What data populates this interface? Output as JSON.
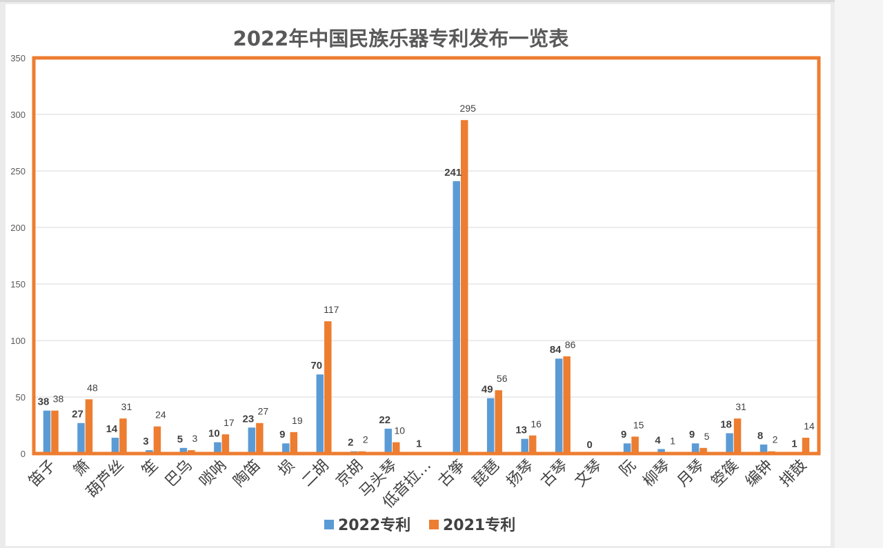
{
  "chart_data": {
    "type": "bar",
    "title": "2022年中国民族乐器专利发布一览表",
    "categories": [
      "笛子",
      "箫",
      "葫芦丝",
      "笙",
      "巴乌",
      "唢呐",
      "陶笛",
      "埙",
      "二胡",
      "京胡",
      "马头琴",
      "低音拉…",
      "古筝",
      "琵琶",
      "扬琴",
      "古琴",
      "文琴",
      "阮",
      "柳琴",
      "月琴",
      "箜篌",
      "编钟",
      "排鼓"
    ],
    "series": [
      {
        "name": "2022专利",
        "color": "#5b9bd5",
        "values": [
          38,
          27,
          14,
          3,
          5,
          10,
          23,
          9,
          70,
          2,
          22,
          1,
          241,
          49,
          13,
          84,
          0,
          9,
          4,
          9,
          18,
          8,
          1
        ]
      },
      {
        "name": "2021专利",
        "color": "#ed7d31",
        "values": [
          38,
          48,
          31,
          24,
          3,
          17,
          27,
          19,
          117,
          2,
          10,
          0,
          295,
          56,
          16,
          86,
          0,
          15,
          1,
          5,
          31,
          2,
          14
        ]
      }
    ],
    "series_labels_shown": [
      [
        true,
        true,
        true,
        true,
        true,
        true,
        true,
        true,
        true,
        true,
        true,
        true,
        true,
        true,
        true,
        true,
        true,
        true,
        true,
        true,
        true,
        true,
        true
      ],
      [
        true,
        true,
        true,
        true,
        true,
        true,
        true,
        true,
        true,
        true,
        true,
        false,
        true,
        true,
        true,
        true,
        false,
        true,
        true,
        true,
        true,
        true,
        true
      ]
    ],
    "ylim": [
      0,
      350
    ],
    "yticks": [
      0,
      50,
      100,
      150,
      200,
      250,
      300,
      350
    ],
    "xlabel": "",
    "ylabel": "",
    "grid": true,
    "legend": "bottom",
    "frame_color": "#ed7d31"
  }
}
